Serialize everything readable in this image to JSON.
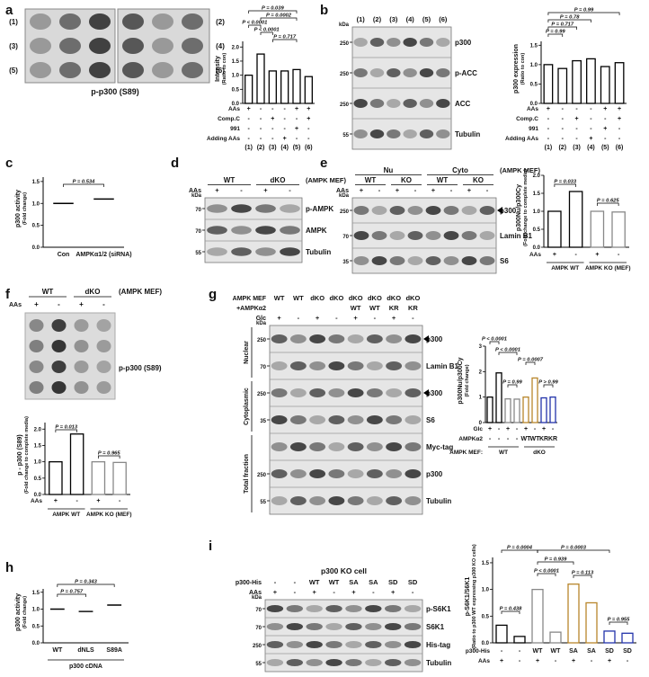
{
  "letters": [
    "a",
    "b",
    "c",
    "d",
    "e",
    "f",
    "g",
    "h",
    "i"
  ],
  "dotblots": [
    {
      "labels": [
        "(1)",
        "(2)",
        "(3)",
        "(4)",
        "(5)",
        "(6)"
      ],
      "caption": "p-p300 (S89)"
    },
    {
      "groups": [
        "WT",
        "dKO"
      ],
      "tag": "(AMPK MEF)",
      "rows": [
        {
          "name": "AAs",
          "values": [
            "+",
            "-",
            "+",
            "-"
          ]
        }
      ],
      "caption": "p-p300 (S89)"
    }
  ],
  "blots": [
    {
      "rows": [
        {
          "values": [
            "(1)",
            "(2)",
            "(3)",
            "(4)",
            "(5)",
            "(6)"
          ]
        }
      ],
      "kda_unit": "kDa",
      "bands": [
        {
          "label": "p300",
          "kda": "250"
        },
        {
          "label": "p-ACC",
          "kda": "250"
        },
        {
          "label": "ACC",
          "kda": "250"
        },
        {
          "label": "Tubulin",
          "kda": "55"
        }
      ]
    },
    {
      "groups": [
        [
          "WT",
          "dKO"
        ]
      ],
      "tag": "(AMPK MEF)",
      "rows": [
        {
          "name": "AAs",
          "values": [
            "+",
            "-",
            "+",
            "-"
          ]
        }
      ],
      "kda_unit": "kDa",
      "bands": [
        {
          "label": "p-AMPK",
          "kda": "70"
        },
        {
          "label": "AMPK",
          "kda": "70"
        },
        {
          "label": "Tubulin",
          "kda": "55"
        }
      ]
    },
    {
      "groups": [
        [
          "Nu",
          "Cyto"
        ],
        [
          "WT",
          "KO",
          "WT",
          "KO"
        ]
      ],
      "tag": "(AMPK MEF)",
      "rows": [
        {
          "name": "AAs",
          "values": [
            "+",
            "-",
            "+",
            "-",
            "+",
            "-",
            "+",
            "-"
          ]
        }
      ],
      "kda_unit": "kDa",
      "bands": [
        {
          "label": "p300",
          "kda": "250"
        },
        {
          "label": "Lamin B1",
          "kda": "70"
        },
        {
          "label": "S6",
          "kda": "35"
        }
      ]
    },
    {
      "rows": [
        {
          "name": "AMPK MEF",
          "values": [
            "WT",
            "WT",
            "dKO",
            "dKO",
            "dKO",
            "dKO",
            "dKO",
            "dKO"
          ]
        },
        {
          "name": "+AMPKα2",
          "values": [
            null,
            null,
            null,
            null,
            "WT",
            "WT",
            "KR",
            "KR"
          ]
        },
        {
          "name": "Glc",
          "values": [
            "+",
            "-",
            "+",
            "-",
            "+",
            "-",
            "+",
            "-"
          ]
        }
      ],
      "sections": [
        "Nuclear",
        "Cytoplasmic",
        "Total fraction"
      ],
      "kda_unit": "kDa",
      "bands": [
        {
          "label": "p300",
          "kda": "250"
        },
        {
          "label": "Lamin B1",
          "kda": "70"
        },
        {
          "label": "p300",
          "kda": "250"
        },
        {
          "label": "S6",
          "kda": "35"
        },
        {
          "label": "Myc-tag"
        },
        {
          "label": "p300",
          "kda": "250"
        },
        {
          "label": "Tubulin",
          "kda": "55"
        }
      ]
    },
    {
      "title": "p300 KO cell",
      "rows": [
        {
          "name": "p300-His",
          "values": [
            "-",
            "-",
            "WT",
            "WT",
            "SA",
            "SA",
            "SD",
            "SD"
          ]
        },
        {
          "name": "AAs",
          "values": [
            "+",
            "-",
            "+",
            "-",
            "+",
            "-",
            "+",
            "-"
          ]
        }
      ],
      "kda_unit": "kDa",
      "bands": [
        {
          "label": "p-S6K1",
          "kda": "70"
        },
        {
          "label": "S6K1",
          "kda": "70"
        },
        {
          "label": "His-tag",
          "kda": "250"
        },
        {
          "label": "Tubulin",
          "kda": "55"
        }
      ]
    }
  ],
  "chart_data": [
    {
      "type": "bar",
      "ylabel": "Intensity",
      "ylabel_note": "(Ratio to con)",
      "ylim": [
        0,
        2.2
      ],
      "yticks": [
        {
          "value": 0,
          "label": "0.0"
        },
        0.5,
        {
          "value": 1,
          "label": "1.0"
        },
        1.5,
        {
          "value": 2,
          "label": "2.0"
        }
      ],
      "categories": [
        "(1)",
        "(2)",
        "(3)",
        "(4)",
        "(5)",
        "(6)"
      ],
      "values": [
        1.0,
        1.75,
        1.15,
        1.15,
        1.2,
        0.95
      ],
      "colors": [
        "#000",
        "#000",
        "#000",
        "#000",
        "#000",
        "#000"
      ],
      "rows": [
        {
          "name": "AAs",
          "values": [
            "+",
            "-",
            "-",
            "-",
            "+",
            "+"
          ]
        },
        {
          "name": "Comp.C",
          "values": [
            "-",
            "-",
            "+",
            "-",
            "-",
            "+"
          ]
        },
        {
          "name": "991",
          "values": [
            "-",
            "-",
            "-",
            "-",
            "+",
            "-"
          ]
        },
        {
          "name": "Adding AAs",
          "values": [
            "-",
            "-",
            "-",
            "+",
            "-",
            "-"
          ]
        }
      ],
      "annotations": [
        "P = 0.039",
        "P = 0.0002",
        "P < 0.0001",
        "P < 0.0001",
        "P = 0.717"
      ]
    },
    {
      "type": "bar",
      "ylabel": "p300 expression",
      "ylabel_note": "(Ratio to con)",
      "ylim": [
        0,
        1.6
      ],
      "yticks": [
        {
          "value": 0,
          "label": "0.0"
        },
        0.5,
        {
          "value": 1,
          "label": "1.0"
        },
        1.5
      ],
      "categories": [
        "(1)",
        "(2)",
        "(3)",
        "(4)",
        "(5)",
        "(6)"
      ],
      "values": [
        1.0,
        0.9,
        1.1,
        1.15,
        0.95,
        1.05
      ],
      "colors": [
        "#000",
        "#000",
        "#000",
        "#000",
        "#000",
        "#000"
      ],
      "rows": [
        {
          "name": "AAs",
          "values": [
            "+",
            "-",
            "-",
            "-",
            "+",
            "+"
          ]
        },
        {
          "name": "Comp.C",
          "values": [
            "-",
            "-",
            "+",
            "-",
            "-",
            "+"
          ]
        },
        {
          "name": "991",
          "values": [
            "-",
            "-",
            "-",
            "-",
            "+",
            "-"
          ]
        },
        {
          "name": "Adding AAs",
          "values": [
            "-",
            "-",
            "-",
            "+",
            "-",
            "-"
          ]
        }
      ],
      "annotations": [
        "P = 0.99",
        "P = 0.78",
        "P = 0.717",
        "P = 0.99"
      ]
    },
    {
      "type": "dot",
      "ylabel": "p300 activity",
      "ylabel_note": "(Fold change)",
      "ylim": [
        0,
        1.6
      ],
      "yticks": [
        {
          "value": 0,
          "label": "0.0"
        },
        0.5,
        {
          "value": 1,
          "label": "1.0"
        },
        1.5
      ],
      "categories": [
        "Con",
        "AMPKα1/2 (siRNA)"
      ],
      "values": [
        1.0,
        1.1
      ],
      "colors": [
        "#000",
        "#000"
      ],
      "annotations": [
        "P = 0.534"
      ]
    },
    {
      "type": "bar",
      "ylabel": "p300Nu/p300Cy",
      "ylabel_note": "(Fold change to complete media)",
      "ylim": [
        0,
        2.0
      ],
      "yticks": [
        {
          "value": 0,
          "label": "0.0"
        },
        0.5,
        {
          "value": 1,
          "label": "1.0"
        },
        1.5,
        {
          "value": 2,
          "label": "2.0"
        }
      ],
      "values": [
        1.0,
        1.55,
        1.0,
        0.98
      ],
      "colors": [
        "#000",
        "#000",
        "#888",
        "#888"
      ],
      "rows": [
        {
          "name": "AAs",
          "values": [
            "+",
            "-",
            "+",
            "-"
          ]
        }
      ],
      "groups": [
        "AMPK WT",
        "AMPK KO (MEF)"
      ],
      "annotations": [
        "P = 0.033",
        "P = 0.625"
      ]
    },
    {
      "type": "bar",
      "ylabel": "p - p300 (S89)",
      "ylabel_note": "(Fold change to complete media)",
      "ylim": [
        0,
        2.2
      ],
      "yticks": [
        {
          "value": 0,
          "label": "0.0"
        },
        0.5,
        {
          "value": 1,
          "label": "1.0"
        },
        1.5,
        {
          "value": 2,
          "label": "2.0"
        }
      ],
      "values": [
        1.0,
        1.85,
        1.0,
        0.98
      ],
      "colors": [
        "#000",
        "#000",
        "#888",
        "#888"
      ],
      "rows": [
        {
          "name": "AAs",
          "values": [
            "+",
            "-",
            "+",
            "-"
          ]
        }
      ],
      "groups": [
        "AMPK WT",
        "AMPK KO (MEF)"
      ],
      "annotations": [
        "P = 0.013",
        "P = 0.965"
      ]
    },
    {
      "type": "bar",
      "ylabel": "p300Nu/p300Cy",
      "ylabel_note": "(Fold change)",
      "ylim": [
        0,
        3
      ],
      "yticks": [
        0,
        1,
        2,
        3
      ],
      "values": [
        1.0,
        1.95,
        0.93,
        0.92,
        1.0,
        1.75,
        0.97,
        1.0
      ],
      "colors": [
        "#000",
        "#000",
        "#888",
        "#888",
        "#b8862b",
        "#b8862b",
        "#2233aa",
        "#2233aa"
      ],
      "rows": [
        {
          "name": "Glc",
          "values": [
            "+",
            "-",
            "+",
            "-",
            "+",
            "-",
            "+",
            "-"
          ]
        },
        {
          "name": "AMPKα2",
          "values": [
            "-",
            "-",
            "-",
            "-",
            "WT",
            "WT",
            "KR",
            "KR"
          ]
        }
      ],
      "group_title": "AMPK MEF:",
      "groups": [
        "WT",
        "dKO"
      ],
      "annotations": [
        "P < 0.0001",
        "P < 0.0001",
        "P = 0.99",
        "P = 0.0007",
        "P > 0.99"
      ]
    },
    {
      "type": "dot",
      "ylabel": "p300 activity",
      "ylabel_note": "(Fold change)",
      "ylim": [
        0,
        1.6
      ],
      "yticks": [
        {
          "value": 0,
          "label": "0.0"
        },
        0.5,
        {
          "value": 1,
          "label": "1.0"
        },
        1.5
      ],
      "categories": [
        "WT",
        "dNLS",
        "S89A"
      ],
      "values": [
        1.0,
        0.93,
        1.12
      ],
      "colors": [
        "#000",
        "#000",
        "#000"
      ],
      "xlabel": "p300 cDNA",
      "annotations": [
        "P = 0.343",
        "P = 0.757"
      ]
    },
    {
      "type": "bar",
      "ylabel": "p-S6K1/S6K1",
      "ylabel_note": "(Ratio to p300 WT expressing p300 KO cells)",
      "ylim": [
        0,
        1.6
      ],
      "yticks": [
        {
          "value": 0,
          "label": "0.0"
        },
        0.5,
        {
          "value": 1,
          "label": "1.0"
        },
        1.5
      ],
      "values": [
        0.33,
        0.12,
        1.0,
        0.2,
        1.1,
        0.75,
        0.22,
        0.18
      ],
      "colors": [
        "#000",
        "#000",
        "#888",
        "#888",
        "#b8862b",
        "#b8862b",
        "#2233aa",
        "#2233aa"
      ],
      "rows": [
        {
          "name": "p300-His",
          "values": [
            "-",
            "-",
            "WT",
            "WT",
            "SA",
            "SA",
            "SD",
            "SD"
          ]
        },
        {
          "name": "AAs",
          "values": [
            "+",
            "-",
            "+",
            "-",
            "+",
            "-",
            "+",
            "-"
          ]
        }
      ],
      "annotations": [
        "P = 0.0004",
        "P = 0.0003",
        "P = 0.939",
        "P < 0.0001",
        "P = 0.113",
        "P = 0.438",
        "P = 0.955"
      ]
    }
  ]
}
